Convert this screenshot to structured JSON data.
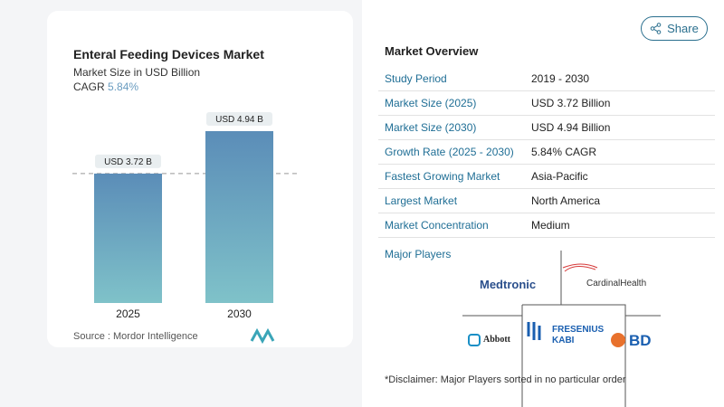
{
  "chart_data": {
    "type": "bar",
    "title": "Enteral Feeding Devices Market",
    "subtitle": "Market Size in USD Billion",
    "cagr_label": "CAGR",
    "cagr_value": "5.84%",
    "categories": [
      "2025",
      "2030"
    ],
    "values": [
      3.72,
      4.94
    ],
    "data_labels": [
      "USD 3.72 B",
      "USD 4.94 B"
    ],
    "ylim": [
      0,
      5
    ],
    "grid": false,
    "reference_line": "dashed at 2025 value",
    "colors": {
      "bar_top": "#5b8db8",
      "bar_bottom": "#7fc2c9"
    },
    "source": "Source :  Mordor Intelligence"
  },
  "share_label": "Share",
  "overview": {
    "title": "Market Overview",
    "rows": [
      {
        "k": "Study Period",
        "v": "2019 - 2030"
      },
      {
        "k": "Market Size (2025)",
        "v": "USD 3.72 Billion"
      },
      {
        "k": "Market Size (2030)",
        "v": "USD 4.94 Billion"
      },
      {
        "k": "Growth Rate (2025 - 2030)",
        "v": "5.84% CAGR"
      },
      {
        "k": "Fastest Growing Market",
        "v": "Asia-Pacific"
      },
      {
        "k": "Largest Market",
        "v": "North America"
      },
      {
        "k": "Market Concentration",
        "v": "Medium"
      }
    ]
  },
  "players": {
    "title": "Major Players",
    "logos": [
      "Medtronic",
      "CardinalHealth",
      "Abbott",
      "FRESENIUS KABI",
      "BD"
    ]
  },
  "disclaimer": "*Disclaimer: Major Players sorted in no particular order"
}
